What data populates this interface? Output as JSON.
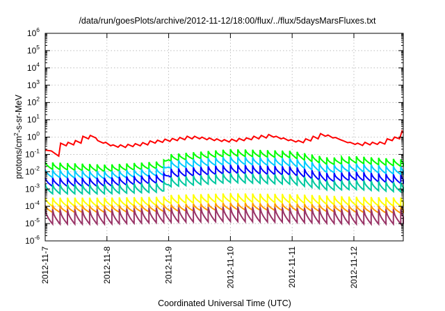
{
  "chart_data": {
    "type": "line",
    "title": "/data/run/goesPlots/archive/2012-11-12/18:00/flux/../flux/5daysMarsFluxes.txt",
    "xlabel": "Coordinated Universal Time (UTC)",
    "ylabel": "protons/cm²-s-sr-MeV",
    "ylabel_parts": {
      "pre": "protons/cm",
      "sup": "2",
      "post": "-s-sr-MeV"
    },
    "yscale": "log",
    "ylim_exp": [
      -6,
      6
    ],
    "y_tick_labels": [
      {
        "base": "10",
        "exp": "-6"
      },
      {
        "base": "10",
        "exp": "-5"
      },
      {
        "base": "10",
        "exp": "-4"
      },
      {
        "base": "10",
        "exp": "-3"
      },
      {
        "base": "10",
        "exp": "-2"
      },
      {
        "base": "10",
        "exp": "-1"
      },
      {
        "base": "10",
        "exp": "0"
      },
      {
        "base": "10",
        "exp": "1"
      },
      {
        "base": "10",
        "exp": "2"
      },
      {
        "base": "10",
        "exp": "3"
      },
      {
        "base": "10",
        "exp": "4"
      },
      {
        "base": "10",
        "exp": "5"
      },
      {
        "base": "10",
        "exp": "6"
      }
    ],
    "xlim": [
      0,
      5.8
    ],
    "x_ticks": [
      0,
      1,
      2,
      3,
      4,
      5
    ],
    "x_tick_labels": [
      "2012-11-7",
      "2012-11-8",
      "2012-11-9",
      "2012-11-10",
      "2012-11-11",
      "2012-11-12"
    ],
    "grid": true,
    "series": [
      {
        "color": "#ff0000",
        "x": [
          0,
          0.1,
          0.22,
          0.25,
          0.34,
          0.37,
          0.46,
          0.49,
          0.58,
          0.61,
          0.7,
          0.73,
          0.82,
          0.85,
          0.94,
          0.98,
          1.06,
          1.1,
          1.18,
          1.22,
          1.3,
          1.34,
          1.42,
          1.46,
          1.54,
          1.58,
          1.66,
          1.7,
          1.78,
          1.82,
          1.9,
          1.94,
          2.02,
          2.06,
          2.14,
          2.18,
          2.26,
          2.3,
          2.38,
          2.42,
          2.5,
          2.54,
          2.62,
          2.66,
          2.74,
          2.78,
          2.86,
          2.9,
          2.98,
          3.02,
          3.1,
          3.14,
          3.22,
          3.26,
          3.34,
          3.38,
          3.46,
          3.5,
          3.58,
          3.62,
          3.7,
          3.74,
          3.82,
          3.86,
          3.94,
          3.98,
          4.06,
          4.1,
          4.18,
          4.22,
          4.3,
          4.34,
          4.42,
          4.46,
          4.54,
          4.58,
          4.66,
          4.7,
          4.78,
          4.82,
          4.9,
          4.94,
          5.02,
          5.06,
          5.14,
          5.18,
          5.26,
          5.3,
          5.38,
          5.42,
          5.5,
          5.54,
          5.62,
          5.66,
          5.74,
          5.78,
          5.8
        ],
        "y_log": [
          -0.75,
          -0.8,
          -1.1,
          -0.35,
          -0.5,
          -0.3,
          -0.45,
          -0.2,
          -0.35,
          0.05,
          -0.1,
          0.1,
          -0.05,
          -0.2,
          -0.35,
          -0.3,
          -0.5,
          -0.45,
          -0.58,
          -0.45,
          -0.6,
          -0.42,
          -0.55,
          -0.38,
          -0.5,
          -0.32,
          -0.45,
          -0.22,
          -0.35,
          -0.18,
          -0.3,
          -0.12,
          -0.25,
          -0.08,
          -0.2,
          -0.02,
          -0.15,
          0.05,
          -0.1,
          0.05,
          -0.1,
          0.0,
          -0.15,
          -0.05,
          -0.2,
          -0.1,
          -0.25,
          -0.15,
          -0.28,
          -0.12,
          -0.25,
          -0.08,
          -0.2,
          -0.05,
          -0.15,
          0.05,
          -0.1,
          0.1,
          -0.05,
          0.15,
          0.0,
          0.05,
          -0.1,
          -0.05,
          -0.2,
          -0.15,
          -0.28,
          -0.2,
          -0.32,
          -0.1,
          -0.22,
          0.05,
          -0.1,
          0.2,
          0.05,
          0.12,
          -0.05,
          -0.02,
          -0.15,
          -0.2,
          -0.32,
          -0.3,
          -0.42,
          -0.35,
          -0.48,
          -0.3,
          -0.45,
          -0.3,
          -0.42,
          -0.28,
          -0.4,
          -0.1,
          -0.2,
          0.0,
          -0.1,
          0.35,
          0.25
        ]
      },
      {
        "color": "#00ff00",
        "period": 0.12,
        "x_start": 0,
        "x_end": 5.8,
        "base_log": [
          [
            0,
            -1.65
          ],
          [
            1.0,
            -1.8
          ],
          [
            1.9,
            -1.6
          ],
          [
            2.0,
            -1.2
          ],
          [
            3.0,
            -0.9
          ],
          [
            4.0,
            -1.0
          ],
          [
            4.6,
            -1.4
          ],
          [
            5.0,
            -1.3
          ],
          [
            5.8,
            -1.5
          ]
        ],
        "amp_log": 0.4
      },
      {
        "color": "#00ccff",
        "period": 0.12,
        "x_start": 0,
        "x_end": 5.8,
        "base_log": [
          [
            0,
            -2.1
          ],
          [
            1.0,
            -2.2
          ],
          [
            1.9,
            -2.0
          ],
          [
            2.0,
            -1.6
          ],
          [
            3.0,
            -1.35
          ],
          [
            4.0,
            -1.45
          ],
          [
            4.6,
            -1.85
          ],
          [
            5.0,
            -1.75
          ],
          [
            5.8,
            -1.95
          ]
        ],
        "amp_log": 0.45
      },
      {
        "color": "#0000ff",
        "period": 0.12,
        "x_start": 0,
        "x_end": 5.8,
        "base_log": [
          [
            0,
            -2.6
          ],
          [
            1.0,
            -2.6
          ],
          [
            1.9,
            -2.4
          ],
          [
            2.0,
            -2.1
          ],
          [
            3.0,
            -1.85
          ],
          [
            4.0,
            -1.95
          ],
          [
            4.6,
            -2.35
          ],
          [
            5.0,
            -2.25
          ],
          [
            5.8,
            -2.45
          ]
        ],
        "amp_log": 0.5
      },
      {
        "color": "#00c8a0",
        "period": 0.12,
        "x_start": 0,
        "x_end": 5.8,
        "base_log": [
          [
            0,
            -3.0
          ],
          [
            1.0,
            -3.0
          ],
          [
            1.9,
            -2.9
          ],
          [
            2.0,
            -2.6
          ],
          [
            3.0,
            -2.35
          ],
          [
            4.0,
            -2.45
          ],
          [
            4.6,
            -2.8
          ],
          [
            5.0,
            -2.75
          ],
          [
            5.8,
            -2.9
          ]
        ],
        "amp_log": 0.55
      },
      {
        "color": "#ffff00",
        "period": 0.12,
        "x_start": 0,
        "x_end": 5.8,
        "base_log": [
          [
            0,
            -3.75
          ],
          [
            1.0,
            -3.75
          ],
          [
            1.9,
            -3.7
          ],
          [
            2.0,
            -3.6
          ],
          [
            3.0,
            -3.5
          ],
          [
            4.0,
            -3.55
          ],
          [
            5.0,
            -3.7
          ],
          [
            5.8,
            -3.75
          ]
        ],
        "amp_log": 0.5
      },
      {
        "color": "#ff9900",
        "period": 0.12,
        "x_start": 0,
        "x_end": 5.8,
        "base_log": [
          [
            0,
            -4.15
          ],
          [
            1.0,
            -4.15
          ],
          [
            2.0,
            -4.1
          ],
          [
            3.0,
            -4.0
          ],
          [
            4.0,
            -4.05
          ],
          [
            5.0,
            -4.15
          ],
          [
            5.8,
            -4.2
          ]
        ],
        "amp_log": 0.4
      },
      {
        "color": "#993366",
        "period": 0.12,
        "x_start": 0,
        "x_end": 5.8,
        "base_log": [
          [
            0,
            -4.6
          ],
          [
            1.0,
            -4.6
          ],
          [
            2.0,
            -4.5
          ],
          [
            3.0,
            -4.45
          ],
          [
            4.0,
            -4.5
          ],
          [
            5.0,
            -4.6
          ],
          [
            5.8,
            -4.6
          ]
        ],
        "amp_log": 0.85
      }
    ]
  }
}
